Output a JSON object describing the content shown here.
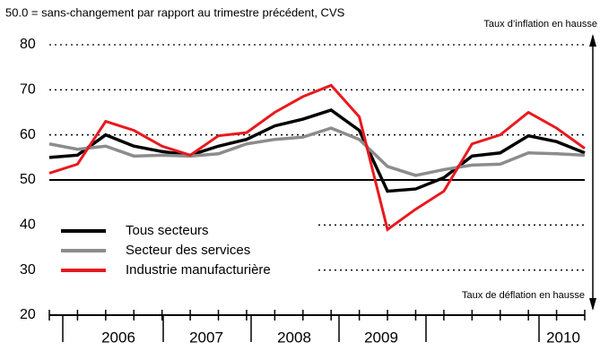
{
  "chart_data": {
    "type": "line",
    "subtitle": "50.0 = sans-changement par rapport au trimestre précédent, CVS",
    "annotations": [
      "Taux d’inflation en hausse",
      "Taux de déflation en hausse"
    ],
    "years": [
      "2006",
      "2007",
      "2008",
      "2009",
      "2010"
    ],
    "series": [
      {
        "name": "Tous secteurs",
        "color": "#000000",
        "values": [
          55,
          55.5,
          60,
          57.5,
          56.3,
          55.5,
          57.5,
          59,
          62,
          63.5,
          65.5,
          61,
          47.5,
          48,
          50.5,
          55.3,
          56,
          59.8,
          58.5,
          56
        ]
      },
      {
        "name": "Secteur des services",
        "color": "#8c8c8c",
        "values": [
          58,
          56.8,
          57.5,
          55.3,
          55.5,
          55.3,
          55.8,
          58,
          59,
          59.5,
          61.5,
          59,
          53,
          51,
          52.3,
          53.3,
          53.5,
          56,
          55.8,
          55.5
        ]
      },
      {
        "name": "Industrie manufacturière",
        "color": "#e8191e",
        "values": [
          51.5,
          53.5,
          63,
          61,
          57.5,
          55.5,
          59.8,
          60.5,
          65,
          68.5,
          71,
          64,
          39,
          43.5,
          47.5,
          58,
          60,
          65,
          61.5,
          57
        ]
      }
    ],
    "ylim": [
      20,
      80
    ],
    "yticks": [
      20,
      30,
      40,
      50,
      60,
      70,
      80
    ],
    "reference_line": 50,
    "grid": "dotted"
  }
}
